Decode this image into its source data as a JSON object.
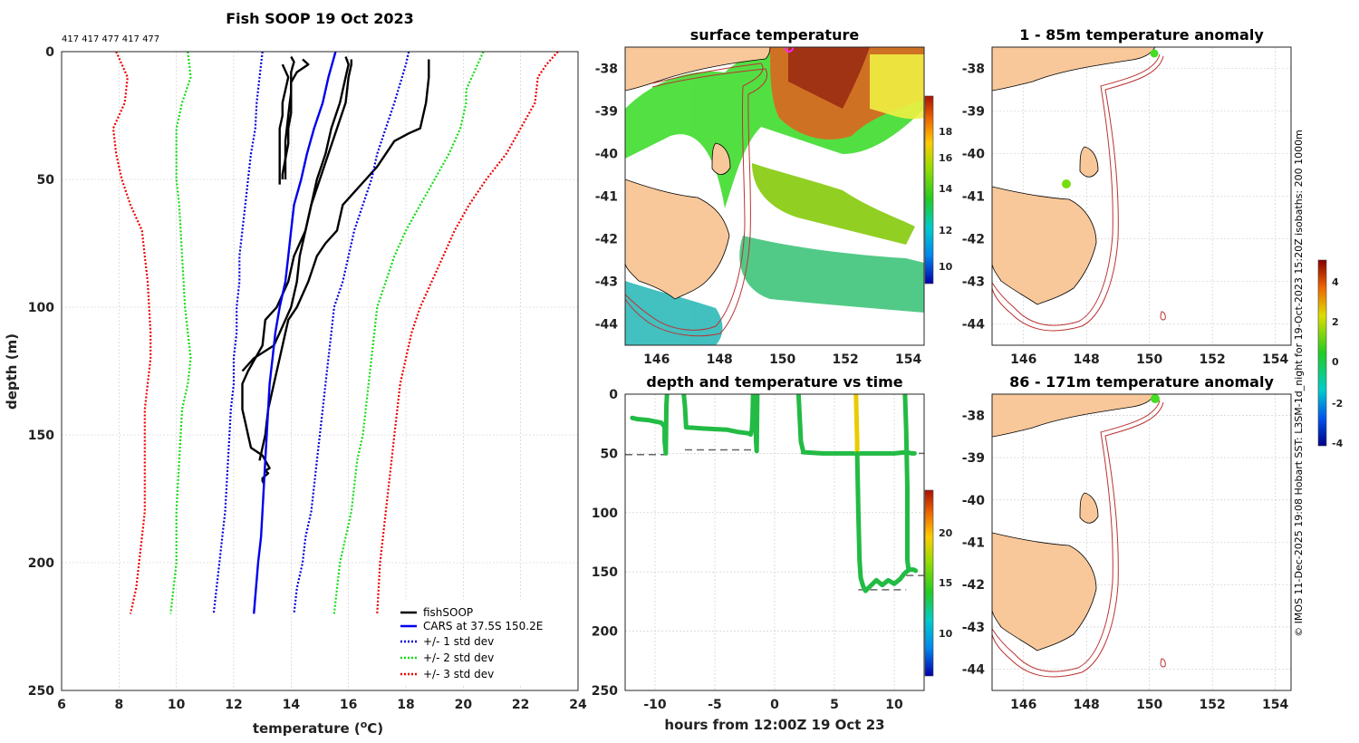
{
  "chart_data": [
    {
      "type": "line",
      "title": "Fish SOOP 19 Oct 2023",
      "xlabel": "temperature (",
      "xlabel_unit": "o",
      "xlabel_end": "C)",
      "ylabel": "depth (m)",
      "xlim": [
        6,
        24
      ],
      "ylim": [
        250,
        0
      ],
      "xticks": [
        "6",
        "8",
        "10",
        "12",
        "14",
        "16",
        "18",
        "20",
        "22",
        "24"
      ],
      "yticks": [
        "0",
        "50",
        "100",
        "150",
        "200",
        "250"
      ],
      "top_labels": "417 417 477 417 477",
      "legend": [
        "fishSOOP",
        "CARS at 37.5S 150.2E",
        "+/- 1 std dev",
        "+/- 2 std dev",
        "+/- 3 std dev"
      ],
      "series": [
        {
          "name": "fishSOOP cast A",
          "color": "#000000",
          "style": "solid",
          "temp": [
            13.7,
            13.9,
            13.8,
            13.7,
            13.7,
            13.6,
            13.6,
            13.6,
            13.6,
            13.6,
            13.6,
            13.6,
            13.6
          ],
          "depth": [
            5,
            10,
            15,
            20,
            25,
            30,
            35,
            40,
            45,
            48,
            50,
            51,
            52
          ]
        },
        {
          "name": "fishSOOP cast B",
          "color": "#000000",
          "style": "solid",
          "temp": [
            14.0,
            14.1,
            14.0,
            14.0,
            14.0,
            13.95,
            13.9,
            13.85,
            13.8,
            13.8,
            13.8,
            13.8
          ],
          "depth": [
            2,
            4,
            8,
            12,
            16,
            20,
            25,
            30,
            35,
            40,
            45,
            50
          ]
        },
        {
          "name": "fishSOOP cast C",
          "color": "#000000",
          "style": "solid",
          "temp": [
            14.4,
            14.6,
            14.2,
            14.0,
            14.0,
            14.0,
            13.9,
            13.9,
            13.8,
            13.7,
            13.7
          ],
          "depth": [
            3,
            5,
            8,
            12,
            18,
            24,
            30,
            36,
            42,
            48,
            50
          ]
        },
        {
          "name": "fishSOOP cast D",
          "color": "#000000",
          "style": "solid",
          "temp": [
            16.1,
            16.1,
            16.0,
            15.9,
            15.6,
            15.3,
            15.0,
            14.7,
            14.5,
            14.1,
            13.9,
            13.5,
            13.1,
            13.0,
            12.5,
            12.3,
            12.3,
            12.4,
            12.5,
            12.6,
            13.0,
            13.1,
            13.2,
            13.25,
            13.1,
            13.2,
            13.1,
            13.0,
            13.0,
            13.05
          ],
          "depth": [
            3,
            5,
            10,
            20,
            30,
            40,
            50,
            60,
            70,
            80,
            90,
            100,
            105,
            115,
            125,
            130,
            140,
            145,
            150,
            155,
            158,
            160,
            162,
            163,
            164,
            165,
            166,
            167,
            168,
            169
          ]
        },
        {
          "name": "fishSOOP cast E",
          "color": "#000000",
          "style": "solid",
          "temp": [
            15.9,
            16.0,
            15.9,
            15.7,
            15.4,
            15.2,
            14.9,
            14.7,
            14.5,
            14.3,
            14.2,
            14.0,
            13.6,
            13.4,
            12.7,
            12.3
          ],
          "depth": [
            2,
            5,
            10,
            20,
            30,
            40,
            50,
            60,
            70,
            80,
            90,
            100,
            110,
            115,
            120,
            125
          ]
        },
        {
          "name": "fishSOOP cast F",
          "color": "#000000",
          "style": "solid",
          "temp": [
            18.8,
            18.8,
            18.7,
            18.6,
            18.5,
            18.1,
            17.6,
            17.3,
            17.0,
            16.6,
            16.2,
            15.8,
            15.6,
            15.2,
            14.9,
            14.6,
            14.2,
            13.9,
            13.8,
            13.6,
            13.4,
            13.2,
            13.1,
            12.9
          ],
          "depth": [
            3,
            10,
            20,
            25,
            30,
            32,
            35,
            40,
            45,
            50,
            55,
            60,
            70,
            75,
            80,
            90,
            100,
            105,
            110,
            120,
            130,
            140,
            150,
            160
          ]
        },
        {
          "name": "CARS at 37.5S 150.2E",
          "color": "#0000ee",
          "style": "solid",
          "temp": [
            15.55,
            15.3,
            15.1,
            14.8,
            14.55,
            14.35,
            14.1,
            14.0,
            13.9,
            13.8,
            13.6,
            13.45,
            13.35,
            13.25,
            13.2,
            13.1,
            13.0,
            12.95,
            12.85,
            12.7
          ],
          "depth": [
            0,
            10,
            20,
            30,
            40,
            50,
            60,
            70,
            80,
            90,
            100,
            110,
            120,
            130,
            140,
            160,
            180,
            190,
            200,
            220
          ]
        },
        {
          "name": "+/- 1 std dev upper",
          "color": "#0000dd",
          "style": "dotted",
          "temp": [
            18.1,
            18.0,
            17.6,
            17.3,
            17.0,
            16.8,
            16.5,
            16.2,
            16.0,
            15.8,
            15.5,
            15.4,
            15.3,
            15.2,
            15.1,
            15.0,
            14.9,
            14.8,
            14.7,
            14.5,
            14.4,
            14.2,
            14.1
          ],
          "depth": [
            0,
            5,
            20,
            30,
            40,
            50,
            60,
            70,
            80,
            90,
            100,
            110,
            120,
            130,
            140,
            150,
            160,
            170,
            180,
            190,
            200,
            210,
            220
          ]
        },
        {
          "name": "+/- 1 std dev lower",
          "color": "#0000dd",
          "style": "dotted",
          "temp": [
            13.0,
            12.9,
            12.8,
            12.75,
            12.6,
            12.5,
            12.4,
            12.3,
            12.2,
            12.2,
            12.1,
            12.1,
            12.0,
            12.0,
            11.9,
            11.8,
            11.7,
            11.6,
            11.5,
            11.4,
            11.3
          ],
          "depth": [
            0,
            10,
            20,
            30,
            40,
            50,
            60,
            70,
            80,
            90,
            100,
            110,
            120,
            130,
            140,
            160,
            180,
            190,
            200,
            210,
            220
          ]
        },
        {
          "name": "+/- 2 std dev upper",
          "color": "#11dd11",
          "style": "dotted",
          "temp": [
            20.7,
            20.3,
            20.1,
            20.1,
            19.9,
            19.5,
            19.0,
            18.5,
            18.0,
            17.6,
            17.3,
            17.0,
            16.9,
            16.8,
            16.7,
            16.6,
            16.5,
            16.3,
            16.1,
            15.9,
            15.7,
            15.5
          ],
          "depth": [
            0,
            10,
            15,
            20,
            30,
            40,
            50,
            60,
            70,
            80,
            90,
            100,
            110,
            120,
            130,
            140,
            150,
            160,
            180,
            190,
            200,
            220
          ]
        },
        {
          "name": "+/- 2 std dev lower",
          "color": "#11dd11",
          "style": "dotted",
          "temp": [
            10.4,
            10.5,
            10.2,
            10.0,
            10.0,
            10.1,
            10.2,
            10.3,
            10.4,
            10.5,
            10.4,
            10.2,
            10.1,
            10.0,
            10.0,
            9.9,
            9.8
          ],
          "depth": [
            0,
            10,
            20,
            30,
            50,
            60,
            80,
            100,
            110,
            120,
            130,
            140,
            160,
            180,
            200,
            210,
            220
          ]
        },
        {
          "name": "+/- 3 std dev upper",
          "color": "#ee0000",
          "style": "dotted",
          "temp": [
            23.3,
            22.9,
            22.6,
            22.5,
            22.0,
            21.5,
            20.8,
            20.2,
            19.7,
            19.3,
            18.9,
            18.5,
            18.2,
            18.0,
            17.8,
            17.7,
            17.6,
            17.5,
            17.4,
            17.3,
            17.2,
            17.1,
            17.0
          ],
          "depth": [
            0,
            5,
            10,
            20,
            30,
            40,
            50,
            60,
            70,
            80,
            90,
            100,
            110,
            120,
            130,
            140,
            150,
            160,
            170,
            180,
            190,
            200,
            220
          ]
        },
        {
          "name": "+/- 3 std dev lower",
          "color": "#ee0000",
          "style": "dotted",
          "temp": [
            7.9,
            8.1,
            8.3,
            8.2,
            7.8,
            7.9,
            8.1,
            8.4,
            8.8,
            8.9,
            9.0,
            9.1,
            9.1,
            9.0,
            8.9,
            8.9,
            8.9,
            8.8,
            8.7,
            8.6,
            8.4
          ],
          "depth": [
            0,
            5,
            10,
            20,
            30,
            40,
            50,
            60,
            70,
            80,
            90,
            110,
            120,
            130,
            140,
            160,
            180,
            190,
            200,
            210,
            220
          ]
        }
      ]
    },
    {
      "type": "heatmap",
      "title": "surface temperature",
      "xticks": [
        "146",
        "148",
        "150",
        "152",
        "154"
      ],
      "yticks": [
        "-38",
        "-39",
        "-40",
        "-41",
        "-42",
        "-43",
        "-44"
      ],
      "colorbar_ticks": [
        "18",
        "16",
        "14",
        "12",
        "10"
      ]
    },
    {
      "type": "scatter",
      "title": "depth and temperature vs time",
      "xlabel": "hours from 12:00Z 19 Oct 23",
      "xlim": [
        -12.5,
        12.5
      ],
      "ylim": [
        250,
        0
      ],
      "xticks": [
        "-10",
        "-5",
        "0",
        "5",
        "10"
      ],
      "yticks": [
        "0",
        "50",
        "100",
        "150",
        "200",
        "250"
      ],
      "colorbar_ticks": [
        "20",
        "15",
        "10"
      ],
      "tows": [
        {
          "color": "#22bb44",
          "hours": [
            -11.9,
            -11.5,
            -10.5,
            -9.5,
            -9.3,
            -9.2,
            -9.2,
            -9.1,
            -9.05,
            -9.0
          ],
          "depth": [
            20,
            21,
            22,
            24,
            26,
            28,
            40,
            50,
            10,
            0
          ]
        },
        {
          "color": "#22bb44",
          "hours": [
            -7.6,
            -7.5,
            -7.4,
            -6.0,
            -4.0,
            -3.0,
            -2.2,
            -2.0,
            -1.9,
            -1.85,
            -1.8
          ],
          "depth": [
            0,
            10,
            28,
            29,
            30,
            32,
            33,
            34,
            30,
            20,
            0
          ]
        },
        {
          "color": "#22bb44",
          "hours": [
            -1.7,
            -1.6,
            -1.55,
            -1.5,
            -1.45
          ],
          "depth": [
            0,
            20,
            40,
            48,
            0
          ]
        },
        {
          "color": "#22bb44",
          "hours": [
            2.0,
            2.1,
            2.2,
            2.4,
            4.0,
            6.0,
            8.0,
            10.0,
            11.0,
            11.5,
            11.7
          ],
          "depth": [
            0,
            20,
            40,
            49,
            50,
            50,
            50,
            50,
            49,
            50,
            50
          ]
        },
        {
          "color": "#e8cc00",
          "hours": [
            6.8,
            6.85,
            6.9,
            6.9
          ],
          "depth": [
            0,
            20,
            40,
            50
          ]
        },
        {
          "color": "#22bb44",
          "hours": [
            6.9,
            7.0,
            7.1,
            7.2,
            7.4,
            7.6,
            8.0,
            8.5,
            9.0,
            9.5,
            10.0,
            10.5,
            10.8,
            11.0,
            11.3,
            11.6,
            11.8
          ],
          "depth": [
            50,
            100,
            140,
            155,
            162,
            166,
            162,
            157,
            161,
            157,
            160,
            156,
            152,
            150,
            148,
            148,
            149
          ]
        },
        {
          "color": "#22bb44",
          "hours": [
            10.9,
            11.0,
            11.1,
            11.1,
            11.2
          ],
          "depth": [
            0,
            30,
            80,
            140,
            148
          ]
        }
      ],
      "target_lines": [
        {
          "hours": [
            -12.5,
            -9.0
          ],
          "depth": 51
        },
        {
          "hours": [
            -7.5,
            -1.6
          ],
          "depth": 47
        },
        {
          "hours": [
            2.2,
            12.5
          ],
          "depth": 50
        },
        {
          "hours": [
            7.0,
            11.0
          ],
          "depth": 165
        },
        {
          "hours": [
            11.0,
            12.5
          ],
          "depth": 153
        }
      ]
    },
    {
      "type": "heatmap",
      "title": "1 - 85m temperature anomaly",
      "xticks": [
        "146",
        "148",
        "150",
        "152",
        "154"
      ],
      "yticks": [
        "-38",
        "-39",
        "-40",
        "-41",
        "-42",
        "-43",
        "-44"
      ]
    },
    {
      "type": "heatmap",
      "title": "86 - 171m temperature anomaly",
      "xticks": [
        "146",
        "148",
        "150",
        "152",
        "154"
      ],
      "yticks": [
        "-38",
        "-39",
        "-40",
        "-41",
        "-42",
        "-43",
        "-44"
      ],
      "colorbar_ticks": [
        "4",
        "2",
        "0",
        "-2",
        "-4"
      ]
    }
  ],
  "side_note": "© IMOS 11-Dec-2025 19:08 Hobart SST: L3SM-1d_night for 19-Oct-2023 15:20Z isobaths: 200 1000m"
}
